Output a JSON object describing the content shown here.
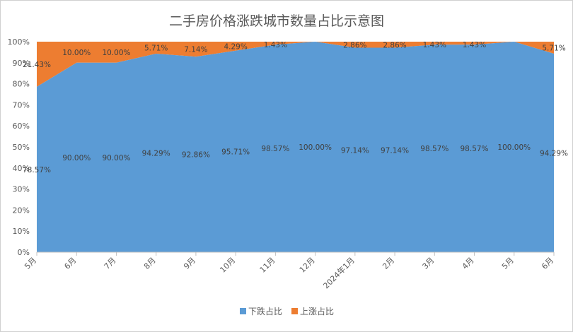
{
  "chart_data": {
    "type": "area",
    "stacked": "percent",
    "title": "二手房价格涨跌城市数量占比示意图",
    "categories": [
      "5月",
      "6月",
      "7月",
      "8月",
      "9月",
      "10月",
      "11月",
      "12月",
      "2024年1月",
      "2月",
      "3月",
      "4月",
      "5月",
      "6月"
    ],
    "y_ticks": [
      "0%",
      "10%",
      "20%",
      "30%",
      "40%",
      "50%",
      "60%",
      "70%",
      "80%",
      "90%",
      "100%"
    ],
    "ylim": [
      0,
      100
    ],
    "grid": false,
    "legend_position": "bottom",
    "series": [
      {
        "name": "下跌占比",
        "color": "#5b9bd5",
        "values": [
          78.57,
          90.0,
          90.0,
          94.29,
          92.86,
          95.71,
          98.57,
          100.0,
          97.14,
          97.14,
          98.57,
          98.57,
          100.0,
          94.29
        ],
        "labels": [
          "78.57%",
          "90.00%",
          "90.00%",
          "94.29%",
          "92.86%",
          "95.71%",
          "98.57%",
          "100.00%",
          "97.14%",
          "97.14%",
          "98.57%",
          "98.57%",
          "100.00%",
          "94.29%"
        ]
      },
      {
        "name": "上涨占比",
        "color": "#ed7d31",
        "values": [
          21.43,
          10.0,
          10.0,
          5.71,
          7.14,
          4.29,
          1.43,
          0,
          2.86,
          2.86,
          1.43,
          1.43,
          0,
          5.71
        ],
        "labels": [
          "21.43%",
          "10.00%",
          "10.00%",
          "5.71%",
          "7.14%",
          "4.29%",
          "1.43%",
          "",
          "2.86%",
          "2.86%",
          "1.43%",
          "1.43%",
          "",
          "5.71%"
        ]
      }
    ]
  }
}
